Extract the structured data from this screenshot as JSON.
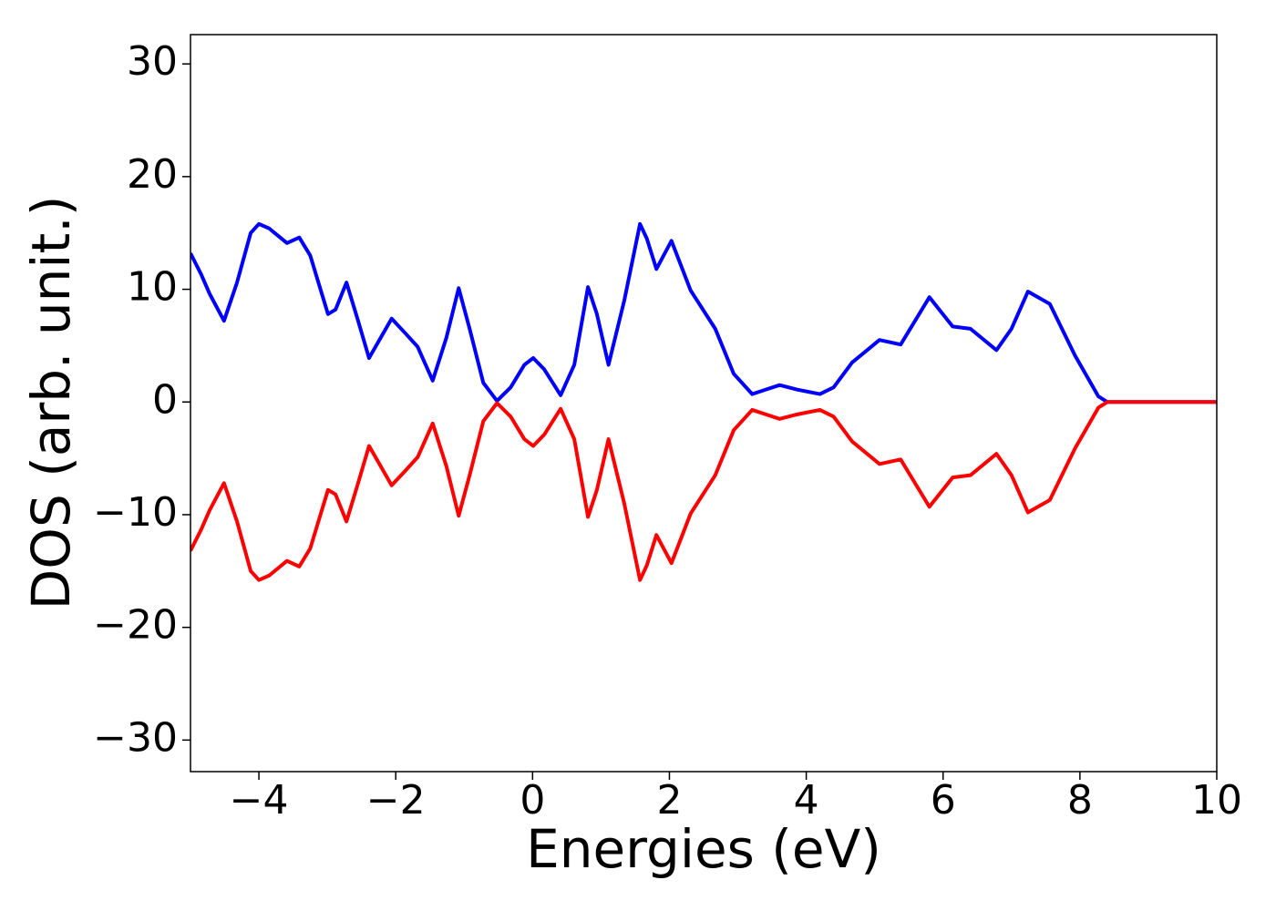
{
  "chart_data": {
    "type": "line",
    "xlabel": "Energies (eV)",
    "ylabel": "DOS (arb. unit.)",
    "x": [
      -5,
      -4.85,
      -4.72,
      -4.51,
      -4.32,
      -4.12,
      -4,
      -3.85,
      -3.59,
      -3.41,
      -3.25,
      -2.99,
      -2.88,
      -2.72,
      -2.56,
      -2.39,
      -2.22,
      -2.06,
      -1.86,
      -1.68,
      -1.46,
      -1.26,
      -1.08,
      -0.92,
      -0.72,
      -0.52,
      -0.32,
      -0.12,
      0.01,
      0.17,
      0.41,
      0.61,
      0.81,
      0.94,
      1.11,
      1.34,
      1.57,
      1.67,
      1.81,
      2.03,
      2.31,
      2.67,
      2.94,
      3.21,
      3.41,
      3.61,
      3.87,
      4.2,
      4.4,
      4.67,
      5.07,
      5.38,
      5.8,
      6.14,
      6.4,
      6.78,
      7,
      7.24,
      7.56,
      7.93,
      8.27,
      8.4,
      10
    ],
    "series": [
      {
        "color": "#0000ff",
        "values": [
          13.2,
          11.4,
          9.6,
          7.2,
          10.6,
          15.0,
          15.8,
          15.4,
          14.1,
          14.6,
          13.0,
          7.8,
          8.2,
          10.6,
          7.4,
          3.9,
          5.7,
          7.4,
          6.1,
          4.9,
          1.9,
          5.7,
          10.1,
          6.5,
          1.7,
          0.1,
          1.3,
          3.3,
          3.9,
          2.9,
          0.6,
          3.3,
          10.2,
          7.8,
          3.3,
          9.0,
          15.8,
          14.5,
          11.8,
          14.3,
          9.9,
          6.5,
          2.5,
          0.7,
          1.1,
          1.5,
          1.1,
          0.7,
          1.3,
          3.5,
          5.5,
          5.1,
          9.3,
          6.7,
          6.5,
          4.6,
          6.5,
          9.8,
          8.7,
          4.1,
          0.5,
          0,
          0
        ]
      },
      {
        "color": "#ff0000",
        "values": [
          -13.2,
          -11.4,
          -9.6,
          -7.2,
          -10.6,
          -15.0,
          -15.8,
          -15.4,
          -14.1,
          -14.6,
          -13.0,
          -7.8,
          -8.2,
          -10.6,
          -7.4,
          -3.9,
          -5.7,
          -7.4,
          -6.1,
          -4.9,
          -1.9,
          -5.7,
          -10.1,
          -6.5,
          -1.7,
          -0.1,
          -1.3,
          -3.3,
          -3.9,
          -2.9,
          -0.6,
          -3.3,
          -10.2,
          -7.8,
          -3.3,
          -9.0,
          -15.8,
          -14.5,
          -11.8,
          -14.3,
          -9.9,
          -6.5,
          -2.5,
          -0.7,
          -1.1,
          -1.5,
          -1.1,
          -0.7,
          -1.3,
          -3.5,
          -5.5,
          -5.1,
          -9.3,
          -6.7,
          -6.5,
          -4.6,
          -6.5,
          -9.8,
          -8.7,
          -4.1,
          -0.5,
          0,
          0
        ]
      }
    ],
    "xlim": [
      -5,
      10
    ],
    "xticks": [
      {
        "value": -4,
        "label": "−4"
      },
      {
        "value": -2,
        "label": "−2"
      },
      0,
      2,
      4,
      6,
      8,
      10
    ],
    "ylim": [
      -32.8,
      32.6
    ],
    "yticks": [
      {
        "value": -30,
        "label": "−30"
      },
      {
        "value": -20,
        "label": "−20"
      },
      {
        "value": -10,
        "label": "−10"
      },
      0,
      10,
      20,
      30
    ],
    "grid": false
  }
}
